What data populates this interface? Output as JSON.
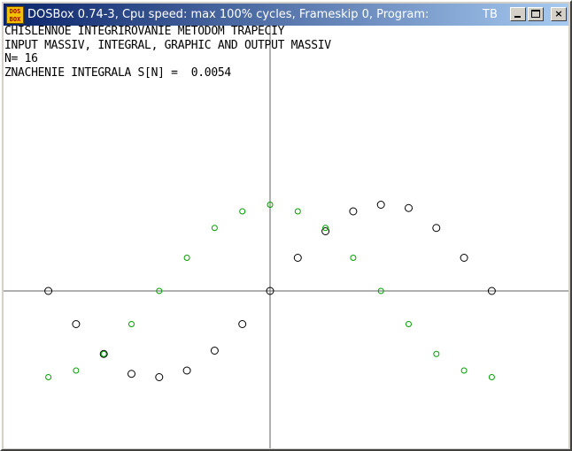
{
  "window": {
    "title": "DOSBox 0.74-3, Cpu speed: max 100% cycles, Frameskip  0, Program:",
    "program": "TB",
    "icon": "dosbox-icon",
    "icon_text": "DOS BOX",
    "buttons": {
      "minimize": "minimize-icon",
      "maximize": "maximize-icon",
      "close": "×"
    }
  },
  "console": {
    "lines": [
      "CHISLENNOE INTEGRIROVANIE METODOM TRAPECIY",
      "INPUT MASSIV, INTEGRAL, GRAPHIC AND OUTPUT MASSIV",
      "N= 16",
      "ZNACHENIE INTEGRALA S[N] =  0.0054"
    ]
  },
  "chart_data": {
    "type": "scatter",
    "title": "",
    "xlabel": "",
    "ylabel": "",
    "colors": {
      "black_series": "#000000",
      "green_series": "#00a000",
      "axes": "#606060"
    },
    "series": [
      {
        "marker": "large-circle",
        "color": "#000000",
        "x": [
          -8,
          -7,
          -6,
          -5,
          -4,
          -3,
          -2,
          -1,
          0,
          1,
          2,
          3,
          4,
          5,
          6,
          7,
          8
        ],
        "y": [
          0,
          -1,
          -1.9,
          -2.5,
          -2.6,
          -2.4,
          -1.8,
          -1,
          0,
          1,
          1.8,
          2.4,
          2.6,
          2.5,
          1.9,
          1,
          0
        ]
      },
      {
        "marker": "small-circle",
        "color": "#00a000",
        "x": [
          -8,
          -7,
          -6,
          -5,
          -4,
          -3,
          -2,
          -1,
          0,
          1,
          2,
          3,
          4,
          5,
          6,
          7,
          8
        ],
        "y": [
          -2.6,
          -2.4,
          -1.9,
          -1,
          0,
          1,
          1.9,
          2.4,
          2.6,
          2.4,
          1.9,
          1,
          0,
          -1,
          -1.9,
          -2.4,
          -2.6
        ]
      }
    ]
  }
}
